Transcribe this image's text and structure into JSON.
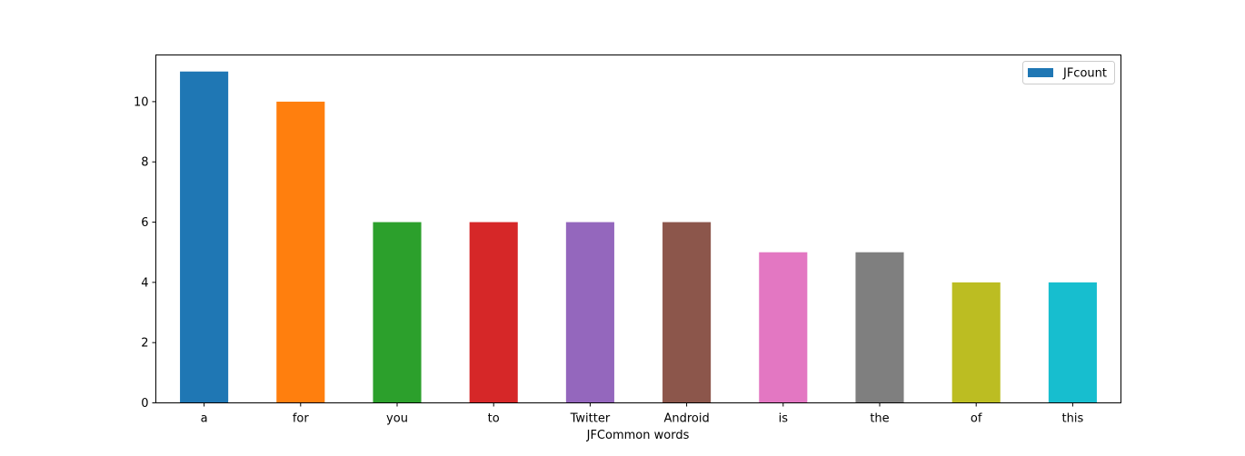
{
  "chart_data": {
    "type": "bar",
    "title": "",
    "xlabel": "JFCommon words",
    "ylabel": "",
    "categories": [
      "a",
      "for",
      "you",
      "to",
      "Twitter",
      "Android",
      "is",
      "the",
      "of",
      "this"
    ],
    "series": [
      {
        "name": "JFcount",
        "values": [
          11,
          10,
          6,
          6,
          6,
          6,
          5,
          5,
          4,
          4
        ]
      }
    ],
    "bar_colors": [
      "#1f77b4",
      "#ff7f0e",
      "#2ca02c",
      "#d62728",
      "#9467bd",
      "#8c564b",
      "#e377c2",
      "#7f7f7f",
      "#bcbd22",
      "#17becf"
    ],
    "legend_color": "#1f77b4",
    "ylim": [
      0,
      11.55
    ],
    "yticks": [
      0,
      2,
      4,
      6,
      8,
      10
    ],
    "grid": false,
    "legend_position": "top-right"
  }
}
